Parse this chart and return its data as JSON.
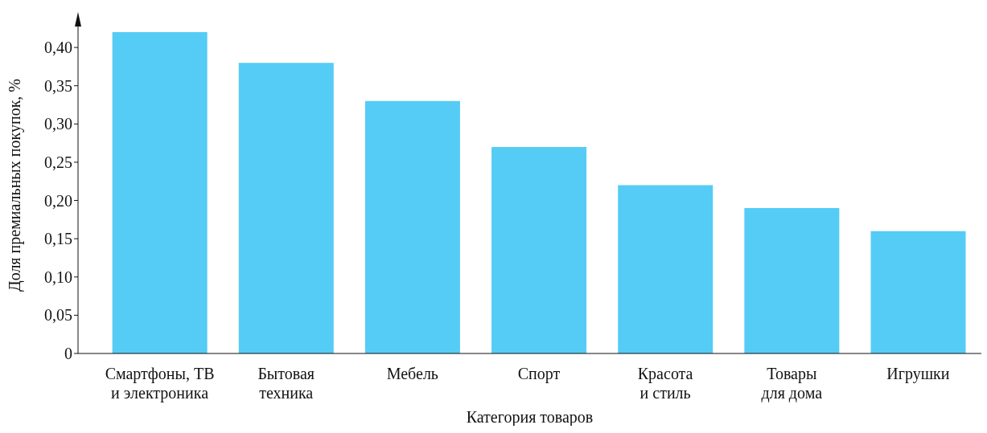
{
  "chart_data": {
    "type": "bar",
    "xlabel": "Категория товаров",
    "ylabel": "Доля премиальных покупок, %",
    "categories": [
      "Смартфоны, ТВ\nи электроника",
      "Бытовая\nтехника",
      "Мебель",
      "Спорт",
      "Красота\nи стиль",
      "Товары\nдля дома",
      "Игрушки"
    ],
    "values": [
      0.42,
      0.38,
      0.33,
      0.27,
      0.22,
      0.19,
      0.16
    ],
    "color": "#55ccf5",
    "ylim": [
      0,
      0.44
    ],
    "yticks": [
      0,
      {
        "value": 0.05,
        "label": "0,05"
      },
      {
        "value": 0.1,
        "label": "0,10"
      },
      {
        "value": 0.15,
        "label": "0,15"
      },
      {
        "value": 0.2,
        "label": "0,20"
      },
      {
        "value": 0.25,
        "label": "0,25"
      },
      {
        "value": 0.3,
        "label": "0,30"
      },
      {
        "value": 0.35,
        "label": "0,35"
      },
      {
        "value": 0.4,
        "label": "0,40"
      }
    ]
  }
}
